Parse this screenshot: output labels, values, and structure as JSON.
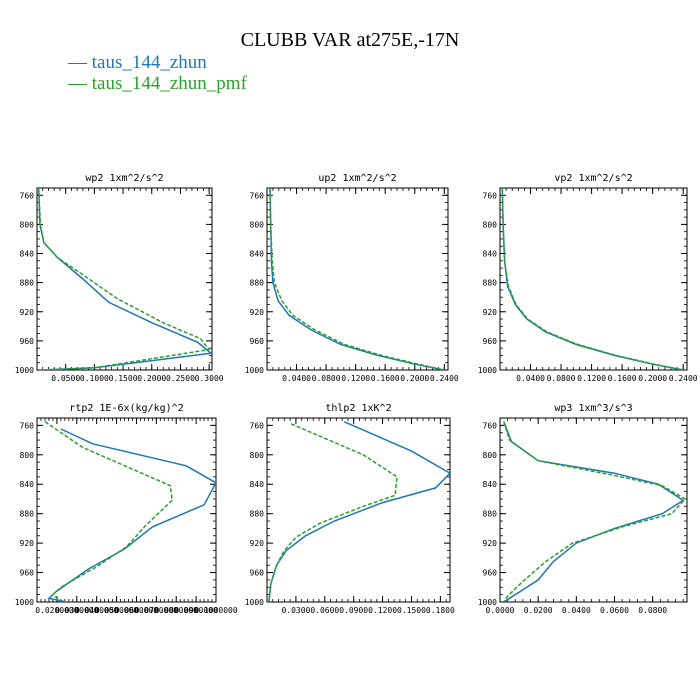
{
  "title": "CLUBB VAR at275E,-17N",
  "legend": [
    {
      "label": "taus_144_zhun",
      "color": "#1f77b4",
      "dash": "solid"
    },
    {
      "label": "taus_144_zhun_pmf",
      "color": "#2ca02c",
      "dash": "dashed"
    }
  ],
  "chart_data": [
    {
      "type": "line",
      "title": "wp2  1xm^2/s^2",
      "xlim": [
        0.0,
        0.305
      ],
      "ylim": [
        1000,
        750
      ],
      "yticks": [
        760,
        800,
        840,
        880,
        920,
        960,
        1000
      ],
      "xticks": [
        0.05,
        0.1,
        0.15,
        0.2,
        0.25,
        0.3
      ],
      "xtick_labels": [
        "0.0500",
        "0.1000",
        "0.1500",
        "0.2000",
        "0.2500",
        "0.3000"
      ],
      "series": [
        {
          "color": "#1f77b4",
          "dash": "solid",
          "points": [
            [
              0.003,
              750
            ],
            [
              0.005,
              800
            ],
            [
              0.012,
              825
            ],
            [
              0.035,
              845
            ],
            [
              0.08,
              875
            ],
            [
              0.125,
              907
            ],
            [
              0.2,
              935
            ],
            [
              0.28,
              962
            ],
            [
              0.303,
              977
            ],
            [
              0.1,
              997
            ],
            [
              0.008,
              1000
            ]
          ]
        },
        {
          "color": "#2ca02c",
          "dash": "dashed",
          "points": [
            [
              0.003,
              750
            ],
            [
              0.006,
              800
            ],
            [
              0.012,
              825
            ],
            [
              0.035,
              845
            ],
            [
              0.085,
              872
            ],
            [
              0.14,
              902
            ],
            [
              0.22,
              935
            ],
            [
              0.285,
              957
            ],
            [
              0.3,
              972
            ],
            [
              0.1,
              997
            ],
            [
              0.008,
              1000
            ]
          ]
        }
      ]
    },
    {
      "type": "line",
      "title": "up2  1xm^2/s^2",
      "xlim": [
        0.0,
        0.245
      ],
      "ylim": [
        1000,
        750
      ],
      "yticks": [
        760,
        800,
        840,
        880,
        920,
        960,
        1000
      ],
      "xticks": [
        0.04,
        0.08,
        0.12,
        0.16,
        0.2,
        0.24
      ],
      "xtick_labels": [
        "0.0400",
        "0.0800",
        "0.1200",
        "0.1600",
        "0.2000",
        "0.2400"
      ],
      "series": [
        {
          "color": "#1f77b4",
          "dash": "solid",
          "points": [
            [
              0.004,
              750
            ],
            [
              0.005,
              800
            ],
            [
              0.006,
              850
            ],
            [
              0.008,
              880
            ],
            [
              0.015,
              905
            ],
            [
              0.03,
              925
            ],
            [
              0.06,
              945
            ],
            [
              0.1,
              965
            ],
            [
              0.15,
              980
            ],
            [
              0.2,
              992
            ],
            [
              0.24,
              1000
            ]
          ]
        },
        {
          "color": "#2ca02c",
          "dash": "dashed",
          "points": [
            [
              0.004,
              750
            ],
            [
              0.005,
              800
            ],
            [
              0.007,
              850
            ],
            [
              0.01,
              880
            ],
            [
              0.02,
              905
            ],
            [
              0.035,
              925
            ],
            [
              0.065,
              945
            ],
            [
              0.105,
              965
            ],
            [
              0.155,
              980
            ],
            [
              0.205,
              992
            ],
            [
              0.24,
              1000
            ]
          ]
        }
      ]
    },
    {
      "type": "line",
      "title": "vp2  1xm^2/s^2",
      "xlim": [
        0.0,
        0.245
      ],
      "ylim": [
        1000,
        750
      ],
      "yticks": [
        760,
        800,
        840,
        880,
        920,
        960,
        1000
      ],
      "xticks": [
        0.04,
        0.08,
        0.12,
        0.16,
        0.2,
        0.24
      ],
      "xtick_labels": [
        "0.0400",
        "0.0800",
        "0.1200",
        "0.1600",
        "0.2000",
        "0.2400"
      ],
      "series": [
        {
          "color": "#1f77b4",
          "dash": "solid",
          "points": [
            [
              0.003,
              750
            ],
            [
              0.004,
              800
            ],
            [
              0.006,
              850
            ],
            [
              0.01,
              885
            ],
            [
              0.02,
              910
            ],
            [
              0.035,
              930
            ],
            [
              0.06,
              948
            ],
            [
              0.1,
              965
            ],
            [
              0.15,
              980
            ],
            [
              0.2,
              992
            ],
            [
              0.24,
              1000
            ]
          ]
        },
        {
          "color": "#2ca02c",
          "dash": "dashed",
          "points": [
            [
              0.003,
              750
            ],
            [
              0.004,
              800
            ],
            [
              0.006,
              850
            ],
            [
              0.011,
              885
            ],
            [
              0.021,
              910
            ],
            [
              0.036,
              930
            ],
            [
              0.062,
              948
            ],
            [
              0.102,
              965
            ],
            [
              0.152,
              980
            ],
            [
              0.202,
              992
            ],
            [
              0.24,
              1000
            ]
          ]
        }
      ]
    },
    {
      "type": "line",
      "title": "rtp2  1E-6x(kg/kg)^2",
      "xlim": [
        0.01,
        0.1
      ],
      "ylim": [
        1000,
        750
      ],
      "yticks": [
        760,
        800,
        840,
        880,
        920,
        960,
        1000
      ],
      "xticks": [
        0.02,
        0.03,
        0.04,
        0.05,
        0.06,
        0.07,
        0.08,
        0.09,
        0.1
      ],
      "xtick_labels": [
        "0.0200000",
        "0.0300000",
        "0.0400000",
        "0.0500000",
        "0.0600000",
        "0.0700000",
        "0.0800000",
        "0.0900000",
        "0.1000000"
      ],
      "series": [
        {
          "color": "#1f77b4",
          "dash": "solid",
          "points": [
            [
              0.022,
              765
            ],
            [
              0.038,
              785
            ],
            [
              0.085,
              815
            ],
            [
              0.1,
              838
            ],
            [
              0.094,
              868
            ],
            [
              0.068,
              898
            ],
            [
              0.054,
              928
            ],
            [
              0.036,
              955
            ],
            [
              0.02,
              985
            ],
            [
              0.016,
              995
            ],
            [
              0.025,
              1000
            ]
          ]
        },
        {
          "color": "#2ca02c",
          "dash": "dashed",
          "points": [
            [
              0.014,
              755
            ],
            [
              0.033,
              790
            ],
            [
              0.077,
              842
            ],
            [
              0.078,
              862
            ],
            [
              0.065,
              895
            ],
            [
              0.055,
              925
            ],
            [
              0.04,
              952
            ],
            [
              0.022,
              980
            ],
            [
              0.018,
              990
            ],
            [
              0.022,
              1000
            ]
          ]
        }
      ]
    },
    {
      "type": "line",
      "title": "thlp2  1xK^2",
      "xlim": [
        0.0,
        0.19
      ],
      "ylim": [
        1000,
        750
      ],
      "yticks": [
        760,
        800,
        840,
        880,
        920,
        960,
        1000
      ],
      "xticks": [
        0.03,
        0.06,
        0.09,
        0.12,
        0.15,
        0.18
      ],
      "xtick_labels": [
        "0.0300",
        "0.0600",
        "0.0900",
        "0.1200",
        "0.1500",
        "0.1800"
      ],
      "series": [
        {
          "color": "#1f77b4",
          "dash": "solid",
          "points": [
            [
              0.08,
              755
            ],
            [
              0.15,
              795
            ],
            [
              0.19,
              825
            ],
            [
              0.175,
              845
            ],
            [
              0.12,
              865
            ],
            [
              0.07,
              890
            ],
            [
              0.04,
              910
            ],
            [
              0.02,
              930
            ],
            [
              0.01,
              950
            ],
            [
              0.004,
              975
            ],
            [
              0.002,
              1000
            ]
          ]
        },
        {
          "color": "#2ca02c",
          "dash": "dashed",
          "points": [
            [
              0.025,
              758
            ],
            [
              0.1,
              800
            ],
            [
              0.135,
              830
            ],
            [
              0.133,
              855
            ],
            [
              0.1,
              870
            ],
            [
              0.055,
              893
            ],
            [
              0.03,
              912
            ],
            [
              0.018,
              930
            ],
            [
              0.01,
              950
            ],
            [
              0.004,
              975
            ],
            [
              0.002,
              1000
            ]
          ]
        }
      ]
    },
    {
      "type": "line",
      "title": "wp3  1xm^3/s^3",
      "xlim": [
        0.0,
        0.098
      ],
      "ylim": [
        1000,
        750
      ],
      "yticks": [
        760,
        800,
        840,
        880,
        920,
        960,
        1000
      ],
      "xticks": [
        0.0,
        0.02,
        0.04,
        0.06,
        0.08
      ],
      "xtick_labels": [
        "0.0000",
        "0.0200",
        "0.0400",
        "0.0600",
        "0.0800"
      ],
      "series": [
        {
          "color": "#1f77b4",
          "dash": "solid",
          "points": [
            [
              0.002,
              755
            ],
            [
              0.006,
              782
            ],
            [
              0.02,
              808
            ],
            [
              0.06,
              825
            ],
            [
              0.083,
              840
            ],
            [
              0.096,
              862
            ],
            [
              0.085,
              880
            ],
            [
              0.06,
              900
            ],
            [
              0.04,
              920
            ],
            [
              0.028,
              945
            ],
            [
              0.02,
              970
            ],
            [
              0.008,
              990
            ],
            [
              0.002,
              1000
            ]
          ]
        },
        {
          "color": "#2ca02c",
          "dash": "dashed",
          "points": [
            [
              0.002,
              755
            ],
            [
              0.005,
              780
            ],
            [
              0.02,
              808
            ],
            [
              0.058,
              827
            ],
            [
              0.085,
              842
            ],
            [
              0.097,
              860
            ],
            [
              0.09,
              880
            ],
            [
              0.064,
              898
            ],
            [
              0.038,
              920
            ],
            [
              0.024,
              945
            ],
            [
              0.012,
              972
            ],
            [
              0.004,
              992
            ],
            [
              0.002,
              1000
            ]
          ]
        }
      ]
    }
  ]
}
